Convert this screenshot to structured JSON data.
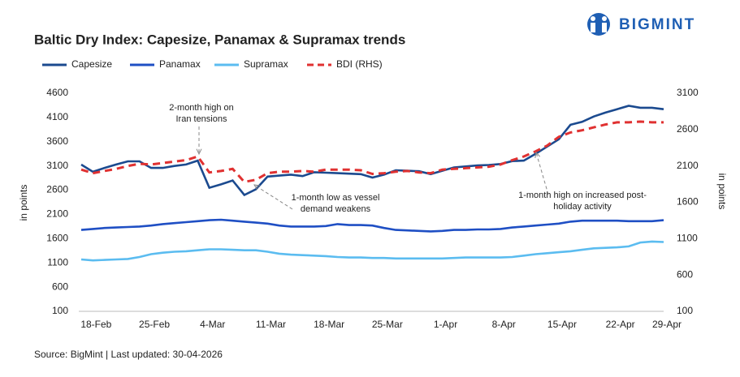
{
  "logo": "BIGMINT",
  "chart_data": {
    "type": "line",
    "title": "Baltic Dry Index: Capesize, Panamax & Supramax trends",
    "ylabel": "in points",
    "y2label": "in points",
    "categories": [
      null,
      "18-Feb",
      null,
      null,
      null,
      null,
      "25-Feb",
      null,
      null,
      null,
      null,
      "4-Mar",
      null,
      null,
      null,
      null,
      "11-Mar",
      null,
      null,
      null,
      null,
      "18-Mar",
      null,
      null,
      null,
      null,
      "25-Mar",
      null,
      null,
      null,
      null,
      "1-Apr",
      null,
      null,
      null,
      null,
      "8-Apr",
      null,
      null,
      null,
      null,
      "15-Apr",
      null,
      null,
      null,
      null,
      "22-Apr",
      null,
      null,
      null,
      "29-Apr"
    ],
    "ylim": [
      100,
      4600
    ],
    "yticks": [
      100,
      600,
      1100,
      1600,
      2100,
      2600,
      3100,
      3600,
      4100,
      4600
    ],
    "y2lim": [
      100,
      3100
    ],
    "y2ticks": [
      100,
      600,
      1100,
      1600,
      2100,
      2600,
      3100
    ],
    "series": [
      {
        "name": "Capesize",
        "color": "#1b4a8f",
        "values": [
          3128,
          2980,
          3060,
          3130,
          3195,
          3195,
          3060,
          3060,
          3100,
          3130,
          3210,
          2650,
          2720,
          2800,
          2500,
          2620,
          2880,
          2900,
          2920,
          2890,
          2970,
          2960,
          2950,
          2940,
          2930,
          2860,
          2920,
          3010,
          3000,
          2990,
          2930,
          3000,
          3070,
          3090,
          3110,
          3120,
          3140,
          3200,
          3210,
          3350,
          3500,
          3650,
          3950,
          4010,
          4120,
          4200,
          4270,
          4340,
          4300,
          4300,
          4270
        ]
      },
      {
        "name": "Panamax",
        "color": "#1f4fc4",
        "values": [
          1780,
          1800,
          1820,
          1830,
          1840,
          1850,
          1870,
          1900,
          1920,
          1940,
          1960,
          1980,
          1990,
          1970,
          1950,
          1930,
          1910,
          1870,
          1850,
          1850,
          1850,
          1860,
          1900,
          1880,
          1880,
          1870,
          1820,
          1780,
          1770,
          1760,
          1750,
          1760,
          1780,
          1780,
          1790,
          1790,
          1800,
          1830,
          1850,
          1870,
          1890,
          1910,
          1950,
          1970,
          1970,
          1970,
          1970,
          1960,
          1960,
          1960,
          1980
        ]
      },
      {
        "name": "Supramax",
        "color": "#5bbcf0",
        "values": [
          1170,
          1150,
          1160,
          1170,
          1180,
          1220,
          1280,
          1310,
          1330,
          1340,
          1360,
          1380,
          1380,
          1370,
          1360,
          1360,
          1330,
          1290,
          1270,
          1260,
          1250,
          1240,
          1220,
          1210,
          1210,
          1200,
          1200,
          1190,
          1190,
          1190,
          1190,
          1190,
          1200,
          1210,
          1210,
          1210,
          1210,
          1220,
          1250,
          1280,
          1300,
          1320,
          1340,
          1370,
          1400,
          1410,
          1420,
          1440,
          1520,
          1540,
          1530
        ]
      },
      {
        "name": "BDI (RHS)",
        "color": "#e03131",
        "dashed": true,
        "axis": "y2",
        "values": [
          2050,
          2000,
          2030,
          2060,
          2100,
          2130,
          2120,
          2140,
          2160,
          2180,
          2230,
          2010,
          2030,
          2060,
          1880,
          1910,
          2000,
          2020,
          2020,
          2030,
          2020,
          2050,
          2050,
          2050,
          2040,
          1990,
          2000,
          2020,
          2030,
          2010,
          2000,
          2050,
          2060,
          2070,
          2080,
          2090,
          2120,
          2180,
          2230,
          2300,
          2380,
          2500,
          2560,
          2590,
          2630,
          2670,
          2700,
          2700,
          2710,
          2700,
          2700
        ]
      }
    ],
    "annotations": [
      {
        "text": [
          "2-month high on",
          "Iran tensions"
        ]
      },
      {
        "text": [
          "1-month low as vessel",
          "demand weakens"
        ]
      },
      {
        "text": [
          "1-month high on increased post-",
          "holiday activity"
        ]
      }
    ]
  },
  "source": "Source: BigMint | Last updated: 30-04-2026"
}
